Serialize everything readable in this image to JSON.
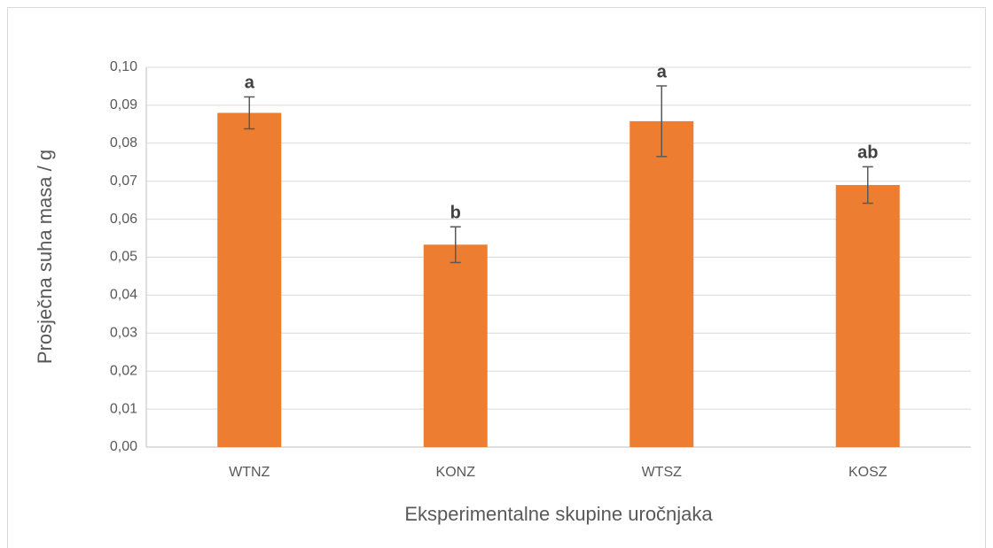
{
  "chart_data": {
    "type": "bar",
    "categories": [
      "WTNZ",
      "KONZ",
      "WTSZ",
      "KOSZ"
    ],
    "values": [
      0.088,
      0.0533,
      0.0858,
      0.069
    ],
    "errors": [
      0.0042,
      0.0047,
      0.0093,
      0.0048
    ],
    "annotations": [
      "a",
      "b",
      "a",
      "ab"
    ],
    "color": "#ed7d31",
    "xlabel": "Eksperimentalne skupine uročnjaka",
    "ylabel": "Prosječna suha masa / g",
    "ylim": [
      0,
      0.1
    ],
    "yticks": [
      {
        "value": 0,
        "label": "0,00"
      },
      {
        "value": 0.01,
        "label": "0,01"
      },
      {
        "value": 0.02,
        "label": "0,02"
      },
      {
        "value": 0.03,
        "label": "0,03"
      },
      {
        "value": 0.04,
        "label": "0,04"
      },
      {
        "value": 0.05,
        "label": "0,05"
      },
      {
        "value": 0.06,
        "label": "0,06"
      },
      {
        "value": 0.07,
        "label": "0,07"
      },
      {
        "value": 0.08,
        "label": "0,08"
      },
      {
        "value": 0.09,
        "label": "0,09"
      },
      {
        "value": 0.1,
        "label": "0,10"
      }
    ],
    "grid": true
  }
}
